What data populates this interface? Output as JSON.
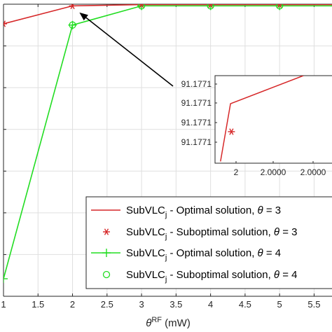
{
  "chart_data": {
    "type": "line",
    "xlabel": {
      "symbol": "θ",
      "superscript": "RF",
      "unit": "(mW)"
    },
    "ylabel": "",
    "xlim": [
      1,
      5.8
    ],
    "ylim": [
      0,
      7
    ],
    "x_ticks": [
      "1",
      "1.5",
      "2",
      "2.5",
      "3",
      "3.5",
      "4",
      "4.5",
      "5",
      "5.5"
    ],
    "x_tick_values": [
      1,
      1.5,
      2,
      2.5,
      3,
      3.5,
      4,
      4.5,
      5,
      5.5
    ],
    "y_tick_values": [
      1,
      2,
      3,
      4,
      5,
      6
    ],
    "grid": true,
    "series": [
      {
        "name": "SubVLC_j - Optimal solution, θ = 3",
        "style": "line",
        "color": "#d62728",
        "x": [
          1,
          2,
          3,
          4,
          5,
          5.8
        ],
        "y": [
          6.53,
          6.96,
          6.99,
          6.99,
          6.99,
          6.99
        ]
      },
      {
        "name": "SubVLC_j - Suboptimal solution, θ = 3",
        "style": "marker-star",
        "color": "#d62728",
        "x": [
          1,
          2,
          3,
          4,
          5
        ],
        "y": [
          6.53,
          6.96,
          6.99,
          6.99,
          6.99
        ]
      },
      {
        "name": "SubVLC_j - Optimal solution, θ = 4",
        "style": "line-plus",
        "color": "#22dd22",
        "x": [
          1,
          2,
          3,
          4,
          5,
          5.8
        ],
        "y": [
          0.42,
          6.5,
          6.96,
          6.96,
          6.96,
          6.96
        ]
      },
      {
        "name": "SubVLC_j - Suboptimal solution, θ = 4",
        "style": "marker-circle",
        "color": "#22dd22",
        "x": [
          2,
          3,
          4,
          5
        ],
        "y": [
          6.5,
          6.96,
          6.96,
          6.96
        ]
      }
    ],
    "legend": {
      "placement": "bottom-right",
      "entries": [
        {
          "base": "SubVLC",
          "sub": "j",
          "rest": " - Optimal solution, θ = 3"
        },
        {
          "base": "SubVLC",
          "sub": "j",
          "rest": " - Suboptimal solution, θ = 3"
        },
        {
          "base": "SubVLC",
          "sub": "j",
          "rest": " - Optimal solution, θ = 4"
        },
        {
          "base": "SubVLC",
          "sub": "j",
          "rest": " - Suboptimal solution, θ = 4"
        }
      ]
    },
    "inset": {
      "y_ticks": [
        "91.1771",
        "91.1771",
        "91.1771",
        "91.1771"
      ],
      "x_ticks": [
        "2",
        "2.0000",
        "2.0000"
      ],
      "xlim": [
        0,
        1
      ],
      "ylim": [
        0,
        1
      ],
      "line_x": [
        0.06,
        0.17,
        0.97
      ],
      "line_y": [
        0.02,
        0.68,
        1.0
      ],
      "star_x": 0.18,
      "star_y": 0.36
    },
    "annotation": {
      "type": "arrow",
      "points_to_x": 2.1,
      "points_to_y": 6.8
    }
  }
}
